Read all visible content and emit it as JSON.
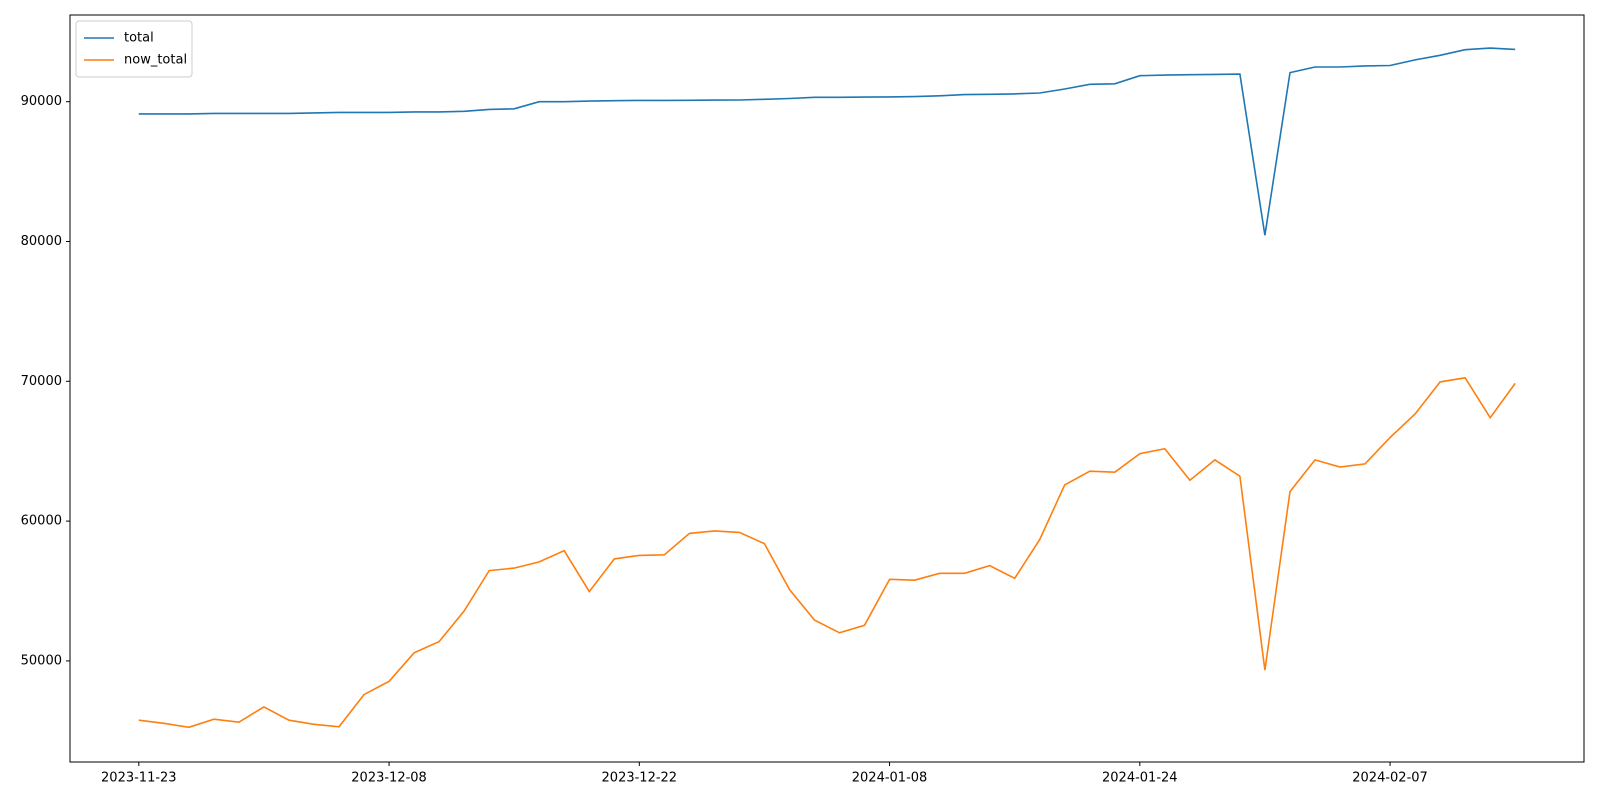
{
  "chart_data": {
    "type": "line",
    "categories": [
      "2023-11-23",
      null,
      null,
      null,
      null,
      null,
      null,
      null,
      null,
      null,
      "2023-12-08",
      null,
      null,
      null,
      null,
      null,
      null,
      null,
      null,
      null,
      "2023-12-22",
      null,
      null,
      null,
      null,
      null,
      null,
      null,
      null,
      null,
      "2024-01-08",
      null,
      null,
      null,
      null,
      null,
      null,
      null,
      null,
      null,
      "2024-01-24",
      null,
      null,
      null,
      null,
      null,
      null,
      null,
      null,
      null,
      "2024-02-07",
      null,
      null,
      null,
      null,
      null
    ],
    "series": [
      {
        "name": "total",
        "color": "#1f77b4",
        "values": [
          89124,
          89124,
          89124,
          89160,
          89160,
          89160,
          89160,
          89197,
          89230,
          89230,
          89230,
          89270,
          89270,
          89310,
          89450,
          89490,
          90000,
          90000,
          90040,
          90070,
          90090,
          90090,
          90100,
          90110,
          90120,
          90170,
          90230,
          90310,
          90310,
          90330,
          90340,
          90365,
          90420,
          90510,
          90530,
          90560,
          90620,
          90910,
          91240,
          91280,
          91860,
          91900,
          91930,
          91950,
          91970,
          80440,
          92080,
          92480,
          92480,
          92560,
          92590,
          92990,
          93320,
          93720,
          93830,
          93740
        ]
      },
      {
        "name": "now_total",
        "color": "#ff7f0e",
        "values": [
          45760,
          45540,
          45250,
          45830,
          45620,
          46710,
          45760,
          45470,
          45290,
          47590,
          48540,
          50580,
          51380,
          53570,
          56460,
          56640,
          57080,
          57880,
          54960,
          57300,
          57550,
          57590,
          59120,
          59300,
          59190,
          58390,
          55110,
          52920,
          52010,
          52550,
          55840,
          55770,
          56270,
          56270,
          56820,
          55910,
          58680,
          62590,
          63570,
          63500,
          64820,
          65180,
          62920,
          64380,
          63210,
          49340,
          62110,
          64380,
          63870,
          64090,
          65980,
          67660,
          69960,
          70250,
          67400,
          69850
        ]
      }
    ],
    "ylim": [
      42770,
      96200
    ],
    "yticks": [
      50000,
      60000,
      70000,
      80000,
      90000
    ],
    "grid": false,
    "legend": "upper left"
  }
}
